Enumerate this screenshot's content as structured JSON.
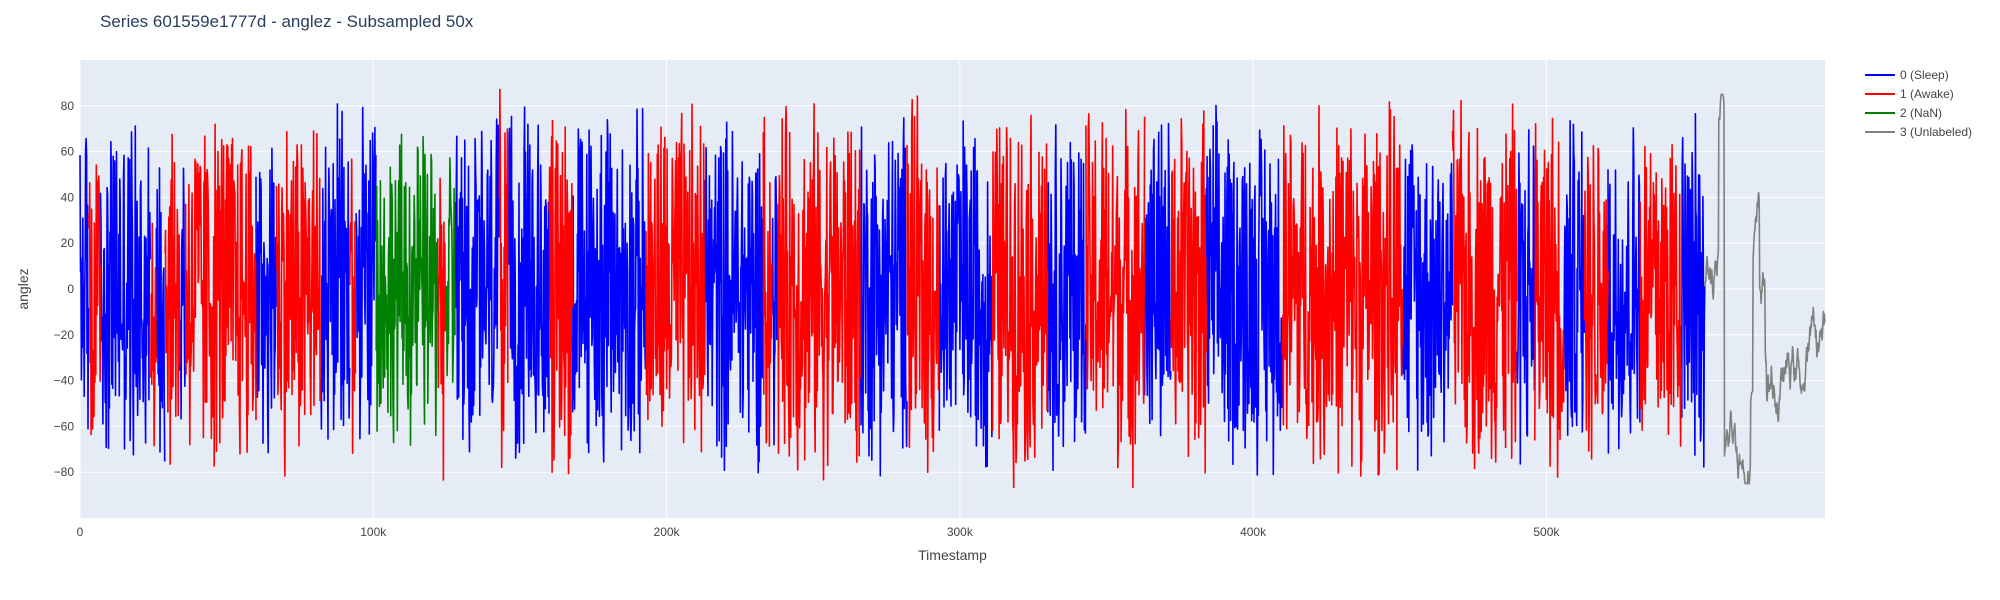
{
  "chart_data": {
    "type": "line",
    "title": "Series 601559e1777d - anglez - Subsampled 50x",
    "xlabel": "Timestamp",
    "ylabel": "anglez",
    "xlim": [
      0,
      595000
    ],
    "ylim": [
      -100,
      100
    ],
    "x_ticks": [
      0,
      100000,
      200000,
      300000,
      400000,
      500000
    ],
    "x_tick_labels": [
      "0",
      "100k",
      "200k",
      "300k",
      "400k",
      "500k"
    ],
    "y_ticks": [
      -80,
      -60,
      -40,
      -20,
      0,
      20,
      40,
      60,
      80
    ],
    "y_tick_labels": [
      "−80",
      "−60",
      "−40",
      "−20",
      "0",
      "20",
      "40",
      "60",
      "80"
    ],
    "grid": true,
    "legend_position": "top-right outside",
    "background": "#e5ecf6",
    "series": [
      {
        "name": "0 (Sleep)",
        "color": "#0000ff",
        "amplitude": 85,
        "segments": [
          [
            0,
            3000
          ],
          [
            7000,
            24000
          ],
          [
            26000,
            29000
          ],
          [
            34000,
            36000
          ],
          [
            60000,
            67000
          ],
          [
            82000,
            92000
          ],
          [
            94000,
            101000
          ],
          [
            128000,
            143000
          ],
          [
            146000,
            160000
          ],
          [
            168000,
            193000
          ],
          [
            213000,
            233000
          ],
          [
            236000,
            238000
          ],
          [
            266000,
            282000
          ],
          [
            293000,
            311000
          ],
          [
            330000,
            343000
          ],
          [
            363000,
            372000
          ],
          [
            384000,
            410000
          ],
          [
            451000,
            468000
          ],
          [
            490000,
            496000
          ],
          [
            506000,
            513000
          ],
          [
            521000,
            532000
          ],
          [
            546000,
            554000
          ]
        ]
      },
      {
        "name": "1 (Awake)",
        "color": "#ff0000",
        "amplitude": 88,
        "segments": [
          [
            3000,
            7000
          ],
          [
            24000,
            26000
          ],
          [
            29000,
            34000
          ],
          [
            36000,
            60000
          ],
          [
            67000,
            82000
          ],
          [
            92000,
            94000
          ],
          [
            122000,
            125000
          ],
          [
            143000,
            146000
          ],
          [
            160000,
            168000
          ],
          [
            193000,
            213000
          ],
          [
            233000,
            236000
          ],
          [
            238000,
            266000
          ],
          [
            282000,
            293000
          ],
          [
            311000,
            330000
          ],
          [
            343000,
            363000
          ],
          [
            372000,
            384000
          ],
          [
            410000,
            451000
          ],
          [
            468000,
            490000
          ],
          [
            496000,
            506000
          ],
          [
            513000,
            521000
          ],
          [
            532000,
            546000
          ]
        ]
      },
      {
        "name": "2 (NaN)",
        "color": "#008000",
        "amplitude": 75,
        "segments": [
          [
            101000,
            122000
          ],
          [
            125000,
            128000
          ]
        ]
      },
      {
        "name": "3 (Unlabeled)",
        "color": "#808080",
        "amplitude": 85,
        "segments": [
          [
            554000,
            595000
          ]
        ]
      }
    ]
  }
}
